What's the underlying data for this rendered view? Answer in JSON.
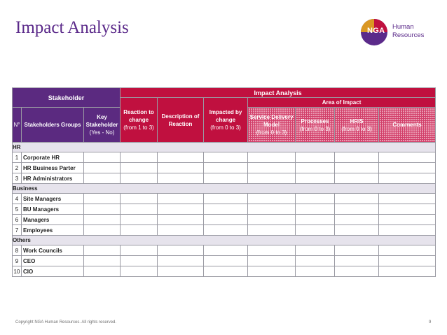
{
  "slide_title": "Impact Analysis",
  "logo": {
    "mark": "NGA",
    "line1": "Human",
    "line2": "Resources",
    "color": "#5b2a8a"
  },
  "table": {
    "stakeholder_header": "Stakeholder",
    "impact_header": "Impact Analysis",
    "area_header": "Area of Impact",
    "col_no": "N°",
    "col_groups": "Stakeholders Groups",
    "col_key_1": "Key Stakeholder",
    "col_key_2": "(Yes - No)",
    "col_reaction_1": "Reaction to change",
    "col_reaction_2": "(from 1 to 3)",
    "col_desc": "Description of Reaction",
    "col_impacted_1": "Impacted by change",
    "col_impacted_2": "(from 0 to 3)",
    "col_service_1": "Service Delivery Model",
    "col_service_2": "(from 0 to 3)",
    "col_processes_1": "Processes",
    "col_processes_2": "(from 0 to 3)",
    "col_hris_1": "HRIS",
    "col_hris_2": "(from 0 to 3)",
    "col_comments": "Comments",
    "groups": [
      {
        "label": "HR",
        "rows": [
          {
            "no": "1",
            "name": "Corporate HR"
          },
          {
            "no": "2",
            "name": "HR Business Parter"
          },
          {
            "no": "3",
            "name": "HR Administrators"
          }
        ]
      },
      {
        "label": "Business",
        "rows": [
          {
            "no": "4",
            "name": "Site Managers"
          },
          {
            "no": "5",
            "name": "BU Managers"
          },
          {
            "no": "6",
            "name": "Managers"
          },
          {
            "no": "7",
            "name": "Employees"
          }
        ]
      },
      {
        "label": "Others",
        "rows": [
          {
            "no": "8",
            "name": "Work Councils"
          },
          {
            "no": "9",
            "name": "CEO"
          },
          {
            "no": "10",
            "name": "CIO"
          }
        ]
      }
    ]
  },
  "footer": "Copyright NGA Human Resources. All rights reserved.",
  "page_number": "9",
  "colors": {
    "purple": "#5b2a80",
    "red": "#c0103f",
    "group_bg": "#e6e3ec"
  }
}
